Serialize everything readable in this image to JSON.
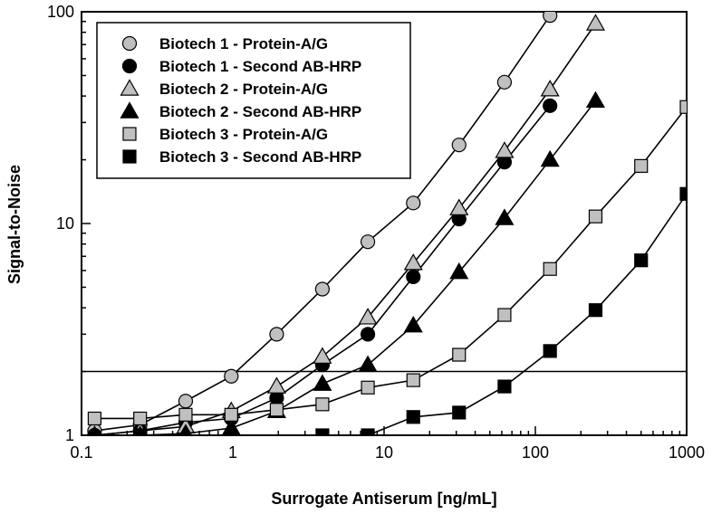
{
  "chart_data": {
    "type": "line",
    "xlabel": "Surrogate Antiserum [ng/mL]",
    "ylabel": "Signal-to-Noise",
    "xscale": "log",
    "yscale": "log",
    "xlim": [
      0.1,
      1000
    ],
    "ylim": [
      1,
      100
    ],
    "x_tick_labels": [
      "0.1",
      "1",
      "10",
      "100",
      "1000"
    ],
    "y_tick_labels": [
      "1",
      "10",
      "100"
    ],
    "x_ticks": [
      0.1,
      1,
      10,
      100,
      1000
    ],
    "y_ticks": [
      1,
      10,
      100
    ],
    "reference_line_y": 2,
    "legend_position": "top-left",
    "grid": false,
    "series": [
      {
        "name": "Biotech 1 - Protein-A/G",
        "marker": "circle",
        "fill": "#c0c0c0",
        "x": [
          0.122,
          0.244,
          0.488,
          0.977,
          1.95,
          3.91,
          7.81,
          15.6,
          31.3,
          62.5,
          125
        ],
        "y": [
          1.05,
          1.12,
          1.45,
          1.9,
          3.0,
          4.9,
          8.2,
          12.5,
          23.5,
          46.5,
          96
        ]
      },
      {
        "name": "Biotech 1 - Second AB-HRP",
        "marker": "circle",
        "fill": "#000000",
        "x": [
          0.122,
          0.244,
          0.488,
          0.977,
          1.95,
          3.91,
          7.81,
          15.6,
          31.3,
          62.5,
          125
        ],
        "y": [
          1.0,
          1.05,
          1.15,
          1.2,
          1.5,
          2.15,
          3.0,
          5.6,
          10.5,
          19.5,
          36
        ]
      },
      {
        "name": "Biotech 2 - Protein-A/G",
        "marker": "triangle",
        "fill": "#c0c0c0",
        "x": [
          0.122,
          0.244,
          0.488,
          0.977,
          1.95,
          3.91,
          7.81,
          15.6,
          31.3,
          62.5,
          125,
          250
        ],
        "y": [
          1.0,
          1.05,
          1.1,
          1.3,
          1.7,
          2.35,
          3.6,
          6.5,
          11.8,
          22,
          43,
          88
        ]
      },
      {
        "name": "Biotech 2 - Second AB-HRP",
        "marker": "triangle",
        "fill": "#000000",
        "x": [
          0.122,
          0.244,
          0.488,
          0.977,
          1.95,
          3.91,
          7.81,
          15.6,
          31.3,
          62.5,
          125,
          250
        ],
        "y": [
          1.0,
          1.0,
          1.02,
          1.08,
          1.3,
          1.75,
          2.15,
          3.3,
          5.9,
          10.6,
          20,
          38
        ]
      },
      {
        "name": "Biotech 3 - Protein-A/G",
        "marker": "square",
        "fill": "#c0c0c0",
        "x": [
          0.122,
          0.244,
          0.488,
          0.977,
          1.95,
          3.91,
          7.81,
          15.6,
          31.3,
          62.5,
          125,
          250,
          500,
          1000
        ],
        "y": [
          1.2,
          1.2,
          1.25,
          1.25,
          1.32,
          1.4,
          1.68,
          1.82,
          2.4,
          3.7,
          6.1,
          10.8,
          18.7,
          35.5
        ]
      },
      {
        "name": "Biotech 3 - Second AB-HRP",
        "marker": "square",
        "fill": "#000000",
        "x": [
          0.244,
          3.91,
          7.81,
          15.6,
          31.3,
          62.5,
          125,
          250,
          500,
          1000
        ],
        "y": [
          1.0,
          1.0,
          1.0,
          1.22,
          1.28,
          1.7,
          2.5,
          3.9,
          6.7,
          13.8
        ]
      }
    ]
  }
}
